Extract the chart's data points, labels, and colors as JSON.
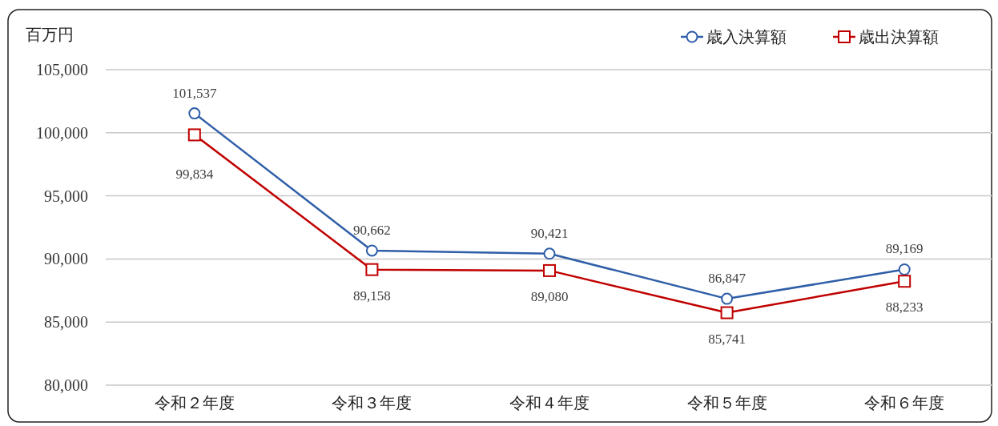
{
  "chart_data": {
    "type": "line",
    "ylabel": "百万円",
    "categories": [
      "令和２年度",
      "令和３年度",
      "令和４年度",
      "令和５年度",
      "令和６年度"
    ],
    "series": [
      {
        "name": "歳入決算額",
        "color": "#2f5ea8",
        "marker": "circle",
        "values": [
          101537,
          90662,
          90421,
          86847,
          89169
        ],
        "value_labels": [
          "101,537",
          "90,662",
          "90,421",
          "86,847",
          "89,169"
        ]
      },
      {
        "name": "歳出決算額",
        "color": "#c00000",
        "marker": "square",
        "values": [
          99834,
          89158,
          89080,
          85741,
          88233
        ],
        "value_labels": [
          "99,834",
          "89,158",
          "89,080",
          "85,741",
          "88,233"
        ]
      }
    ],
    "ylim": [
      80000,
      105000
    ],
    "yticks": [
      {
        "value": 80000,
        "label": "80,000"
      },
      {
        "value": 85000,
        "label": "85,000"
      },
      {
        "value": 90000,
        "label": "90,000"
      },
      {
        "value": 95000,
        "label": "95,000"
      },
      {
        "value": 100000,
        "label": "100,000"
      },
      {
        "value": 105000,
        "label": "105,000"
      }
    ],
    "grid": "y",
    "legend": "top right",
    "line_style": "solid"
  }
}
